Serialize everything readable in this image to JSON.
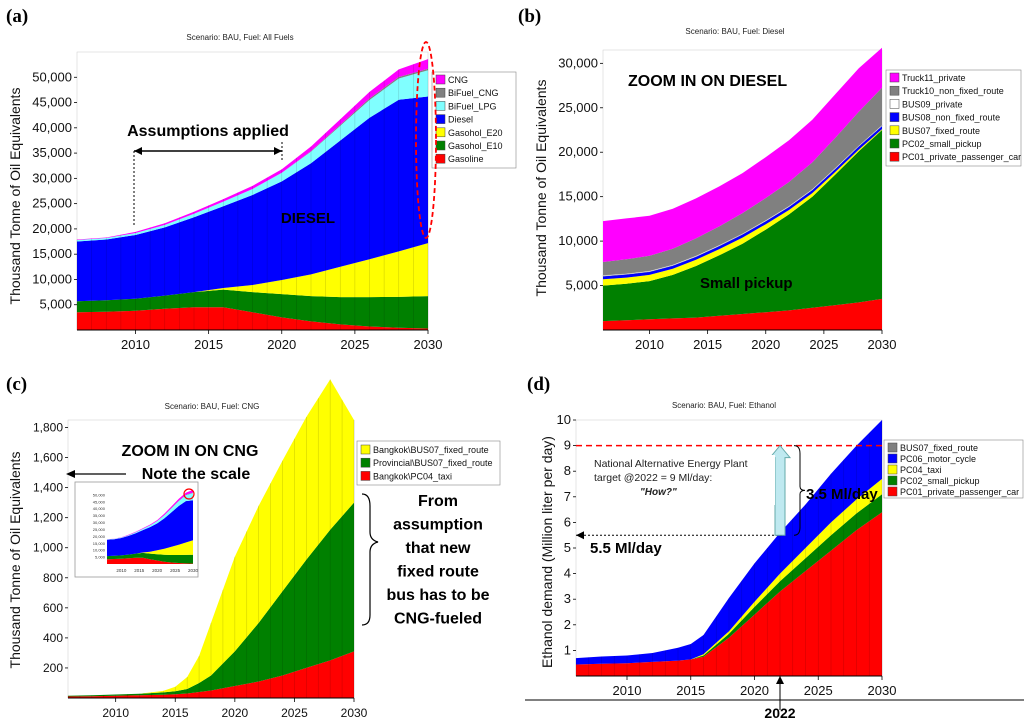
{
  "panels": [
    {
      "id": "a",
      "label": "(a)",
      "scenario_title": "Scenario: BAU, Fuel: All Fuels",
      "ylabel": "Thousand Tonne of Oil Equivalents",
      "y_ticks": [
        "5,000",
        "10,000",
        "15,000",
        "20,000",
        "25,000",
        "30,000",
        "35,000",
        "40,000",
        "45,000",
        "50,000"
      ],
      "x_ticks": [
        "2010",
        "2015",
        "2020",
        "2025",
        "2030"
      ],
      "legend": [
        "CNG",
        "BiFuel_CNG",
        "BiFuel_LPG",
        "Diesel",
        "Gasohol_E20",
        "Gasohol_E10",
        "Gasoline"
      ],
      "annotations": {
        "assumptions": "Assumptions applied",
        "diesel": "DIESEL"
      }
    },
    {
      "id": "b",
      "label": "(b)",
      "scenario_title": "Scenario: BAU, Fuel: Diesel",
      "ylabel": "Thousand Tonne of Oil Equivalents",
      "y_ticks": [
        "5,000",
        "10,000",
        "15,000",
        "20,000",
        "25,000",
        "30,000"
      ],
      "x_ticks": [
        "2010",
        "2015",
        "2020",
        "2025",
        "2030"
      ],
      "legend": [
        "Truck11_private",
        "Truck10_non_fixed_route",
        "BUS09_private",
        "BUS08_non_fixed_route",
        "BUS07_fixed_route",
        "PC02_small_pickup",
        "PC01_private_passenger_car"
      ],
      "annotations": {
        "zoom": "ZOOM IN ON DIESEL",
        "pickup": "Small pickup"
      }
    },
    {
      "id": "c",
      "label": "(c)",
      "scenario_title": "Scenario: BAU, Fuel: CNG",
      "ylabel": "Thousand Tonne of Oil Equivalents",
      "y_ticks": [
        "200",
        "400",
        "600",
        "800",
        "1,000",
        "1,200",
        "1,400",
        "1,600",
        "1,800"
      ],
      "x_ticks": [
        "2010",
        "2015",
        "2020",
        "2025",
        "2030"
      ],
      "legend": [
        "Bangkok\\BUS07_fixed_route",
        "Provincial\\BUS07_fixed_route",
        "Bangkok\\PC04_taxi"
      ],
      "annotations": {
        "zoom": "ZOOM IN ON CNG",
        "scale": "Note the scale",
        "explain": [
          "From",
          "assumption",
          "that new",
          "fixed route",
          "bus has to be",
          "CNG-fueled"
        ]
      },
      "inset_x_ticks": [
        "2010",
        "2015",
        "2020",
        "2025",
        "2030"
      ],
      "inset_y_ticks": [
        "50,000",
        "45,000",
        "40,000",
        "35,000",
        "30,000",
        "25,000",
        "20,000",
        "15,000",
        "10,000",
        "5,000"
      ]
    },
    {
      "id": "d",
      "label": "(d)",
      "scenario_title": "Scenario: BAU, Fuel: Ethanol",
      "ylabel": "Ethanol demand (Million liter per day)",
      "y_ticks": [
        "1",
        "2",
        "3",
        "4",
        "5",
        "6",
        "7",
        "8",
        "9",
        "10"
      ],
      "x_ticks": [
        "2010",
        "2015",
        "2020",
        "2025",
        "2030"
      ],
      "legend": [
        "BUS07_fixed_route",
        "PC06_motor_cycle",
        "PC04_taxi",
        "PC02_small_pickup",
        "PC01_private_passenger_car"
      ],
      "annotations": {
        "plant_line1": "National Alternative Energy Plant",
        "plant_line2": "target @2022 = 9 Ml/day:",
        "how": "\"How?\"",
        "gap": "3.5 Ml/day",
        "current": "5.5 Ml/day",
        "year": "2022"
      }
    }
  ],
  "chart_data": [
    {
      "type": "area",
      "title": "Scenario: BAU, Fuel: All Fuels",
      "ylabel": "Thousand Tonne of Oil Equivalents",
      "x": [
        2006,
        2008,
        2010,
        2012,
        2014,
        2016,
        2018,
        2020,
        2022,
        2024,
        2026,
        2028,
        2030
      ],
      "xlim": [
        2006,
        2030
      ],
      "ylim": [
        0,
        55000
      ],
      "series": [
        {
          "name": "Gasoline",
          "color": "#ff0000",
          "values": [
            3500,
            3600,
            3800,
            4200,
            4500,
            4500,
            3500,
            2500,
            1700,
            1100,
            700,
            450,
            300
          ]
        },
        {
          "name": "Gasohol_E10",
          "color": "#008000",
          "values": [
            2200,
            2300,
            2400,
            2600,
            3000,
            3500,
            4000,
            4600,
            5000,
            5400,
            5800,
            6100,
            6400
          ]
        },
        {
          "name": "Gasohol_E20",
          "color": "#ffff00",
          "values": [
            0,
            0,
            0,
            0,
            0,
            300,
            1400,
            2800,
            4300,
            6000,
            7500,
            9000,
            10500
          ]
        },
        {
          "name": "Diesel",
          "color": "#0000ff",
          "values": [
            11800,
            12000,
            12600,
            13500,
            14800,
            16200,
            17800,
            19500,
            22000,
            25000,
            28000,
            30000,
            29000
          ]
        },
        {
          "name": "BiFuel_LPG",
          "color": "#80ffff",
          "values": [
            300,
            300,
            400,
            500,
            700,
            900,
            1200,
            1700,
            2300,
            2900,
            3500,
            4200,
            5200
          ]
        },
        {
          "name": "BiFuel_CNG",
          "color": "#808080",
          "values": [
            0,
            0,
            0,
            0,
            0,
            0,
            0,
            0,
            100,
            200,
            300,
            300,
            300
          ]
        },
        {
          "name": "CNG",
          "color": "#ff00ff",
          "values": [
            100,
            100,
            200,
            300,
            400,
            500,
            600,
            700,
            900,
            1100,
            1300,
            1500,
            1900
          ]
        }
      ]
    },
    {
      "type": "area",
      "title": "Scenario: BAU, Fuel: Diesel",
      "ylabel": "Thousand Tonne of Oil Equivalents",
      "x": [
        2006,
        2008,
        2010,
        2012,
        2014,
        2016,
        2018,
        2020,
        2022,
        2024,
        2026,
        2028,
        2030
      ],
      "xlim": [
        2006,
        2030
      ],
      "ylim": [
        0,
        31500
      ],
      "series": [
        {
          "name": "PC01_private_passenger_car",
          "color": "#ff0000",
          "values": [
            1000,
            1100,
            1200,
            1300,
            1400,
            1600,
            1800,
            2000,
            2200,
            2500,
            2800,
            3100,
            3500
          ]
        },
        {
          "name": "PC02_small_pickup",
          "color": "#008000",
          "values": [
            4000,
            4100,
            4300,
            4900,
            5800,
            6800,
            7900,
            9300,
            10800,
            12500,
            14700,
            17000,
            19000
          ]
        },
        {
          "name": "BUS07_fixed_route",
          "color": "#ffff00",
          "values": [
            700,
            700,
            700,
            700,
            700,
            700,
            700,
            600,
            500,
            400,
            300,
            200,
            100
          ]
        },
        {
          "name": "BUS08_non_fixed_route",
          "color": "#0000ff",
          "values": [
            350,
            350,
            350,
            350,
            350,
            350,
            350,
            350,
            350,
            350,
            350,
            350,
            350
          ]
        },
        {
          "name": "BUS09_private",
          "color": "#ffffff",
          "values": [
            100,
            100,
            100,
            100,
            100,
            100,
            100,
            100,
            100,
            100,
            100,
            100,
            100
          ]
        },
        {
          "name": "Truck10_non_fixed_route",
          "color": "#808080",
          "values": [
            1500,
            1600,
            1700,
            1800,
            1950,
            2100,
            2300,
            2500,
            2700,
            3000,
            3400,
            3800,
            4200
          ]
        },
        {
          "name": "Truck11_private",
          "color": "#ff00ff",
          "values": [
            4600,
            4600,
            4500,
            4500,
            4500,
            4500,
            4500,
            4600,
            4700,
            4800,
            4900,
            4900,
            4500
          ]
        }
      ]
    },
    {
      "type": "area",
      "title": "Scenario: BAU, Fuel: CNG",
      "ylabel": "Thousand Tonne of Oil Equivalents",
      "x": [
        2006,
        2008,
        2010,
        2012,
        2014,
        2015,
        2016,
        2017,
        2018,
        2020,
        2022,
        2024,
        2026,
        2028,
        2030
      ],
      "xlim": [
        2006,
        2030
      ],
      "ylim": [
        0,
        1850
      ],
      "series": [
        {
          "name": "Bangkok\\PC04_taxi",
          "color": "#ff0000",
          "values": [
            10,
            12,
            15,
            18,
            22,
            25,
            30,
            40,
            50,
            80,
            110,
            150,
            200,
            250,
            310
          ]
        },
        {
          "name": "Provincial\\BUS07_fixed_route",
          "color": "#008000",
          "values": [
            5,
            6,
            8,
            10,
            15,
            20,
            30,
            60,
            100,
            230,
            390,
            560,
            720,
            870,
            990
          ]
        },
        {
          "name": "Bangkok\\BUS07_fixed_route",
          "color": "#ffff00",
          "values": [
            0,
            0,
            0,
            0,
            10,
            30,
            80,
            180,
            350,
            630,
            780,
            870,
            950,
            1000,
            550
          ]
        }
      ]
    },
    {
      "type": "area",
      "title": "Scenario: BAU, Fuel: Ethanol",
      "ylabel": "Ethanol demand (Million liter per day)",
      "x": [
        2006,
        2008,
        2010,
        2012,
        2014,
        2015,
        2016,
        2018,
        2020,
        2022,
        2024,
        2026,
        2028,
        2030
      ],
      "xlim": [
        2006,
        2030
      ],
      "ylim": [
        0,
        10
      ],
      "series": [
        {
          "name": "PC01_private_passenger_car",
          "color": "#ff0000",
          "values": [
            0.45,
            0.48,
            0.5,
            0.55,
            0.6,
            0.65,
            0.75,
            1.5,
            2.4,
            3.3,
            4.1,
            4.9,
            5.7,
            6.4
          ]
        },
        {
          "name": "PC02_small_pickup",
          "color": "#008000",
          "values": [
            0,
            0,
            0,
            0,
            0,
            0,
            0.05,
            0.15,
            0.3,
            0.4,
            0.5,
            0.6,
            0.65,
            0.7
          ]
        },
        {
          "name": "PC04_taxi",
          "color": "#ffff00",
          "values": [
            0,
            0,
            0,
            0,
            0,
            0,
            0.05,
            0.1,
            0.2,
            0.3,
            0.4,
            0.5,
            0.55,
            0.6
          ]
        },
        {
          "name": "PC06_motor_cycle",
          "color": "#0000ff",
          "values": [
            0.25,
            0.28,
            0.3,
            0.35,
            0.5,
            0.6,
            0.75,
            1.3,
            1.5,
            1.6,
            1.7,
            1.9,
            2.1,
            2.3
          ]
        },
        {
          "name": "BUS07_fixed_route",
          "color": "#808080",
          "values": [
            0,
            0,
            0,
            0,
            0,
            0,
            0,
            0,
            0,
            0,
            0,
            0,
            0,
            0
          ]
        }
      ]
    }
  ]
}
